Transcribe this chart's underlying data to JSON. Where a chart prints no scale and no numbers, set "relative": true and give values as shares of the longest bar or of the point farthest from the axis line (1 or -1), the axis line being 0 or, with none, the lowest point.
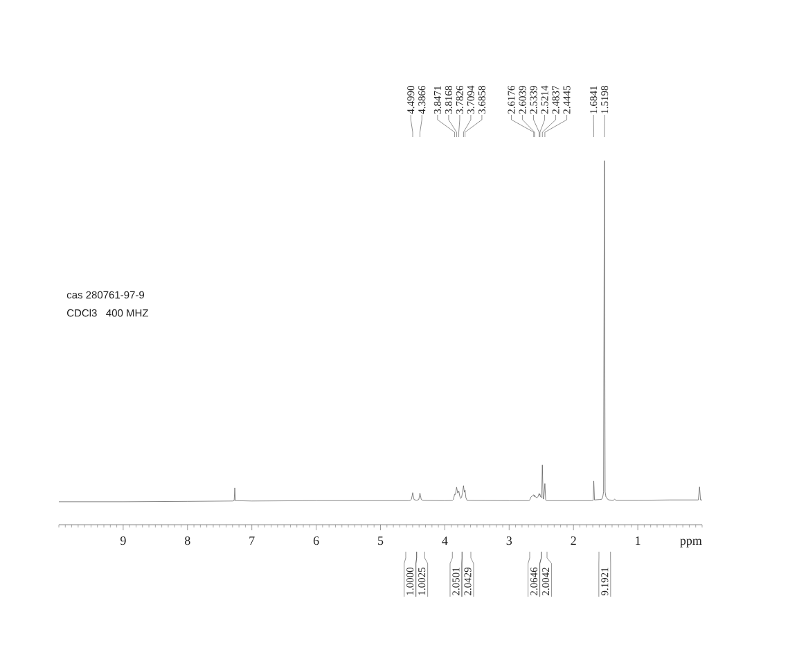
{
  "chart_data": {
    "type": "line",
    "relative": true,
    "xlabel": "ppm",
    "xlim": [
      10,
      0
    ],
    "xticks": [
      9,
      8,
      7,
      6,
      5,
      4,
      3,
      2,
      1
    ],
    "x": [
      10.0,
      9.0,
      8.0,
      7.3,
      7.275,
      7.265,
      7.255,
      7.0,
      6.0,
      5.0,
      4.56,
      4.535,
      4.52,
      4.507,
      4.499,
      4.491,
      4.478,
      4.44,
      4.405,
      4.393,
      4.3866,
      4.379,
      4.366,
      4.34,
      4.0,
      3.88,
      3.865,
      3.855,
      3.8471,
      3.835,
      3.8168,
      3.8,
      3.7826,
      3.77,
      3.755,
      3.74,
      3.725,
      3.7094,
      3.697,
      3.6858,
      3.672,
      3.655,
      3.0,
      2.7,
      2.68,
      2.66,
      2.64,
      2.6176,
      2.611,
      2.6039,
      2.59,
      2.57,
      2.55,
      2.5339,
      2.528,
      2.5214,
      2.51,
      2.495,
      2.4837,
      2.472,
      2.462,
      2.4445,
      2.432,
      2.42,
      2.0,
      1.72,
      1.695,
      1.6841,
      1.673,
      1.6,
      1.56,
      1.545,
      1.532,
      1.5198,
      1.508,
      1.495,
      1.482,
      1.47,
      1.45,
      1.38,
      1.36,
      1.34,
      1.0,
      0.5,
      0.06,
      0.04,
      0.025,
      0.0
    ],
    "values": [
      0.063,
      0.063,
      0.064,
      0.065,
      0.066,
      0.101,
      0.066,
      0.065,
      0.066,
      0.066,
      0.066,
      0.067,
      0.07,
      0.08,
      0.088,
      0.08,
      0.069,
      0.067,
      0.069,
      0.08,
      0.087,
      0.08,
      0.069,
      0.067,
      0.066,
      0.067,
      0.07,
      0.078,
      0.084,
      0.083,
      0.103,
      0.087,
      0.093,
      0.08,
      0.072,
      0.075,
      0.088,
      0.107,
      0.089,
      0.095,
      0.074,
      0.067,
      0.066,
      0.066,
      0.068,
      0.076,
      0.079,
      0.082,
      0.077,
      0.081,
      0.076,
      0.074,
      0.077,
      0.086,
      0.081,
      0.084,
      0.076,
      0.075,
      0.164,
      0.072,
      0.07,
      0.113,
      0.068,
      0.066,
      0.066,
      0.066,
      0.067,
      0.12,
      0.068,
      0.069,
      0.07,
      0.076,
      0.09,
      1.0,
      0.09,
      0.076,
      0.074,
      0.07,
      0.068,
      0.067,
      0.07,
      0.067,
      0.067,
      0.068,
      0.068,
      0.104,
      0.068,
      0.068
    ],
    "color": "#5a5a5a",
    "annotations": [
      "cas 280761-97-9",
      "CDCl3   400 MHZ",
      "4.4990",
      "4.3866",
      "3.8471",
      "3.8168",
      "3.7826",
      "3.7094",
      "3.6858",
      "2.6176",
      "2.6039",
      "2.5339",
      "2.5214",
      "2.4837",
      "2.4445",
      "1.6841",
      "1.5198",
      "1.0000",
      "1.0025",
      "2.0501",
      "2.0429",
      "2.0646",
      "2.0042",
      "9.1921"
    ]
  }
}
